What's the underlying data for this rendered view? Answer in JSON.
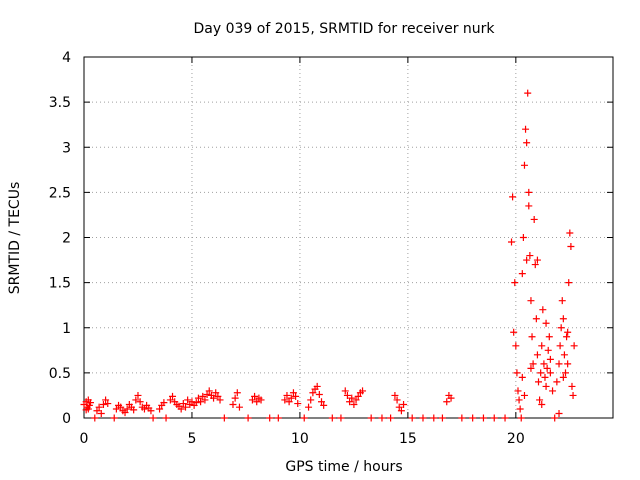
{
  "chart_data": {
    "type": "scatter",
    "title": "Day 039 of 2015, SRMTID for receiver nurk",
    "xlabel": "GPS time / hours",
    "ylabel": "SRMTID / TECUs",
    "xlim": [
      0,
      24.5
    ],
    "ylim": [
      0,
      4
    ],
    "xticks": [
      0,
      5,
      10,
      15,
      20
    ],
    "xtick_labels": [
      "0",
      "5",
      "10",
      "15",
      "20"
    ],
    "yticks": [
      0,
      0.5,
      1,
      1.5,
      2,
      2.5,
      3,
      3.5,
      4
    ],
    "ytick_labels": [
      "0",
      "0.5",
      "1",
      "1.5",
      "2",
      "2.5",
      "3",
      "3.5",
      "4"
    ],
    "grid": true,
    "marker": "plus",
    "series": [
      {
        "name": "SRMTID",
        "color": "#ff0000",
        "points": [
          [
            0.0,
            0.15
          ],
          [
            0.1,
            0.18
          ],
          [
            0.15,
            0.12
          ],
          [
            0.2,
            0.2
          ],
          [
            0.25,
            0.14
          ],
          [
            0.3,
            0.17
          ],
          [
            0.1,
            0.09
          ],
          [
            0.2,
            0.1
          ],
          [
            0.5,
            0.0
          ],
          [
            0.6,
            0.08
          ],
          [
            0.7,
            0.12
          ],
          [
            0.8,
            0.05
          ],
          [
            0.9,
            0.15
          ],
          [
            1.0,
            0.2
          ],
          [
            1.1,
            0.16
          ],
          [
            1.4,
            0.0
          ],
          [
            1.5,
            0.1
          ],
          [
            1.6,
            0.14
          ],
          [
            1.7,
            0.12
          ],
          [
            1.8,
            0.08
          ],
          [
            1.9,
            0.06
          ],
          [
            2.0,
            0.1
          ],
          [
            2.1,
            0.15
          ],
          [
            2.2,
            0.12
          ],
          [
            2.3,
            0.09
          ],
          [
            2.4,
            0.2
          ],
          [
            2.5,
            0.25
          ],
          [
            2.6,
            0.18
          ],
          [
            2.7,
            0.12
          ],
          [
            2.8,
            0.1
          ],
          [
            2.9,
            0.14
          ],
          [
            3.0,
            0.11
          ],
          [
            3.1,
            0.08
          ],
          [
            3.2,
            0.0
          ],
          [
            3.5,
            0.1
          ],
          [
            3.6,
            0.14
          ],
          [
            3.7,
            0.17
          ],
          [
            3.8,
            0.0
          ],
          [
            4.0,
            0.2
          ],
          [
            4.1,
            0.24
          ],
          [
            4.2,
            0.18
          ],
          [
            4.3,
            0.15
          ],
          [
            4.4,
            0.13
          ],
          [
            4.5,
            0.1
          ],
          [
            4.6,
            0.16
          ],
          [
            4.7,
            0.12
          ],
          [
            4.8,
            0.2
          ],
          [
            4.9,
            0.15
          ],
          [
            5.0,
            0.18
          ],
          [
            5.1,
            0.14
          ],
          [
            5.2,
            0.17
          ],
          [
            5.3,
            0.22
          ],
          [
            5.4,
            0.18
          ],
          [
            5.5,
            0.24
          ],
          [
            5.6,
            0.2
          ],
          [
            5.7,
            0.26
          ],
          [
            5.8,
            0.3
          ],
          [
            5.9,
            0.25
          ],
          [
            6.0,
            0.22
          ],
          [
            6.1,
            0.28
          ],
          [
            6.2,
            0.24
          ],
          [
            6.3,
            0.2
          ],
          [
            6.5,
            0.0
          ],
          [
            6.9,
            0.15
          ],
          [
            7.0,
            0.22
          ],
          [
            7.1,
            0.28
          ],
          [
            7.2,
            0.12
          ],
          [
            7.6,
            0.0
          ],
          [
            7.8,
            0.2
          ],
          [
            7.9,
            0.24
          ],
          [
            8.0,
            0.18
          ],
          [
            8.1,
            0.22
          ],
          [
            8.2,
            0.2
          ],
          [
            8.6,
            0.0
          ],
          [
            9.0,
            0.0
          ],
          [
            9.3,
            0.2
          ],
          [
            9.4,
            0.25
          ],
          [
            9.5,
            0.18
          ],
          [
            9.6,
            0.22
          ],
          [
            9.7,
            0.28
          ],
          [
            9.8,
            0.24
          ],
          [
            9.9,
            0.16
          ],
          [
            10.2,
            0.0
          ],
          [
            10.4,
            0.12
          ],
          [
            10.5,
            0.2
          ],
          [
            10.6,
            0.28
          ],
          [
            10.7,
            0.32
          ],
          [
            10.8,
            0.35
          ],
          [
            10.9,
            0.26
          ],
          [
            11.0,
            0.18
          ],
          [
            11.1,
            0.14
          ],
          [
            11.5,
            0.0
          ],
          [
            11.9,
            0.0
          ],
          [
            12.1,
            0.3
          ],
          [
            12.2,
            0.25
          ],
          [
            12.3,
            0.18
          ],
          [
            12.4,
            0.22
          ],
          [
            12.5,
            0.15
          ],
          [
            12.6,
            0.2
          ],
          [
            12.7,
            0.24
          ],
          [
            12.8,
            0.28
          ],
          [
            12.9,
            0.3
          ],
          [
            13.3,
            0.0
          ],
          [
            13.8,
            0.0
          ],
          [
            14.2,
            0.0
          ],
          [
            14.4,
            0.25
          ],
          [
            14.5,
            0.2
          ],
          [
            14.6,
            0.12
          ],
          [
            14.7,
            0.08
          ],
          [
            14.8,
            0.15
          ],
          [
            15.2,
            0.0
          ],
          [
            15.7,
            0.0
          ],
          [
            16.2,
            0.0
          ],
          [
            16.6,
            0.0
          ],
          [
            16.8,
            0.18
          ],
          [
            16.9,
            0.25
          ],
          [
            17.0,
            0.22
          ],
          [
            17.5,
            0.0
          ],
          [
            18.0,
            0.0
          ],
          [
            18.5,
            0.0
          ],
          [
            19.0,
            0.0
          ],
          [
            19.5,
            0.0
          ],
          [
            19.8,
            1.95
          ],
          [
            19.85,
            2.45
          ],
          [
            19.9,
            0.95
          ],
          [
            19.95,
            1.5
          ],
          [
            20.0,
            0.8
          ],
          [
            20.05,
            0.5
          ],
          [
            20.1,
            0.3
          ],
          [
            20.15,
            0.2
          ],
          [
            20.2,
            0.1
          ],
          [
            20.25,
            0.0
          ],
          [
            20.3,
            1.6
          ],
          [
            20.35,
            2.0
          ],
          [
            20.4,
            2.8
          ],
          [
            20.45,
            3.2
          ],
          [
            20.5,
            3.05
          ],
          [
            20.55,
            3.6
          ],
          [
            20.6,
            2.5
          ],
          [
            20.65,
            1.8
          ],
          [
            20.7,
            1.3
          ],
          [
            20.75,
            0.9
          ],
          [
            20.8,
            0.6
          ],
          [
            20.85,
            2.2
          ],
          [
            20.9,
            1.7
          ],
          [
            20.95,
            1.1
          ],
          [
            21.0,
            0.7
          ],
          [
            21.05,
            0.4
          ],
          [
            21.1,
            0.2
          ],
          [
            21.15,
            0.5
          ],
          [
            21.2,
            0.8
          ],
          [
            21.25,
            1.2
          ],
          [
            21.3,
            0.6
          ],
          [
            21.35,
            0.45
          ],
          [
            21.4,
            0.35
          ],
          [
            21.45,
            0.55
          ],
          [
            21.5,
            0.75
          ],
          [
            21.55,
            0.9
          ],
          [
            21.6,
            0.5
          ],
          [
            21.7,
            0.3
          ],
          [
            21.8,
            0.0
          ],
          [
            21.9,
            0.4
          ],
          [
            22.0,
            0.6
          ],
          [
            22.05,
            0.8
          ],
          [
            22.1,
            1.0
          ],
          [
            22.15,
            1.3
          ],
          [
            22.2,
            1.1
          ],
          [
            22.25,
            0.7
          ],
          [
            22.3,
            0.5
          ],
          [
            22.35,
            0.9
          ],
          [
            22.4,
            0.6
          ],
          [
            22.45,
            1.5
          ],
          [
            22.5,
            2.05
          ],
          [
            22.55,
            1.9
          ],
          [
            22.6,
            0.35
          ],
          [
            22.65,
            0.25
          ],
          [
            22.7,
            0.8
          ],
          [
            20.3,
            0.45
          ],
          [
            20.4,
            0.25
          ],
          [
            20.5,
            1.75
          ],
          [
            20.6,
            2.35
          ],
          [
            20.7,
            0.55
          ],
          [
            21.0,
            1.75
          ],
          [
            21.2,
            0.15
          ],
          [
            21.4,
            1.05
          ],
          [
            21.6,
            0.65
          ],
          [
            22.0,
            0.05
          ],
          [
            22.2,
            0.45
          ],
          [
            22.4,
            0.95
          ]
        ]
      }
    ]
  }
}
